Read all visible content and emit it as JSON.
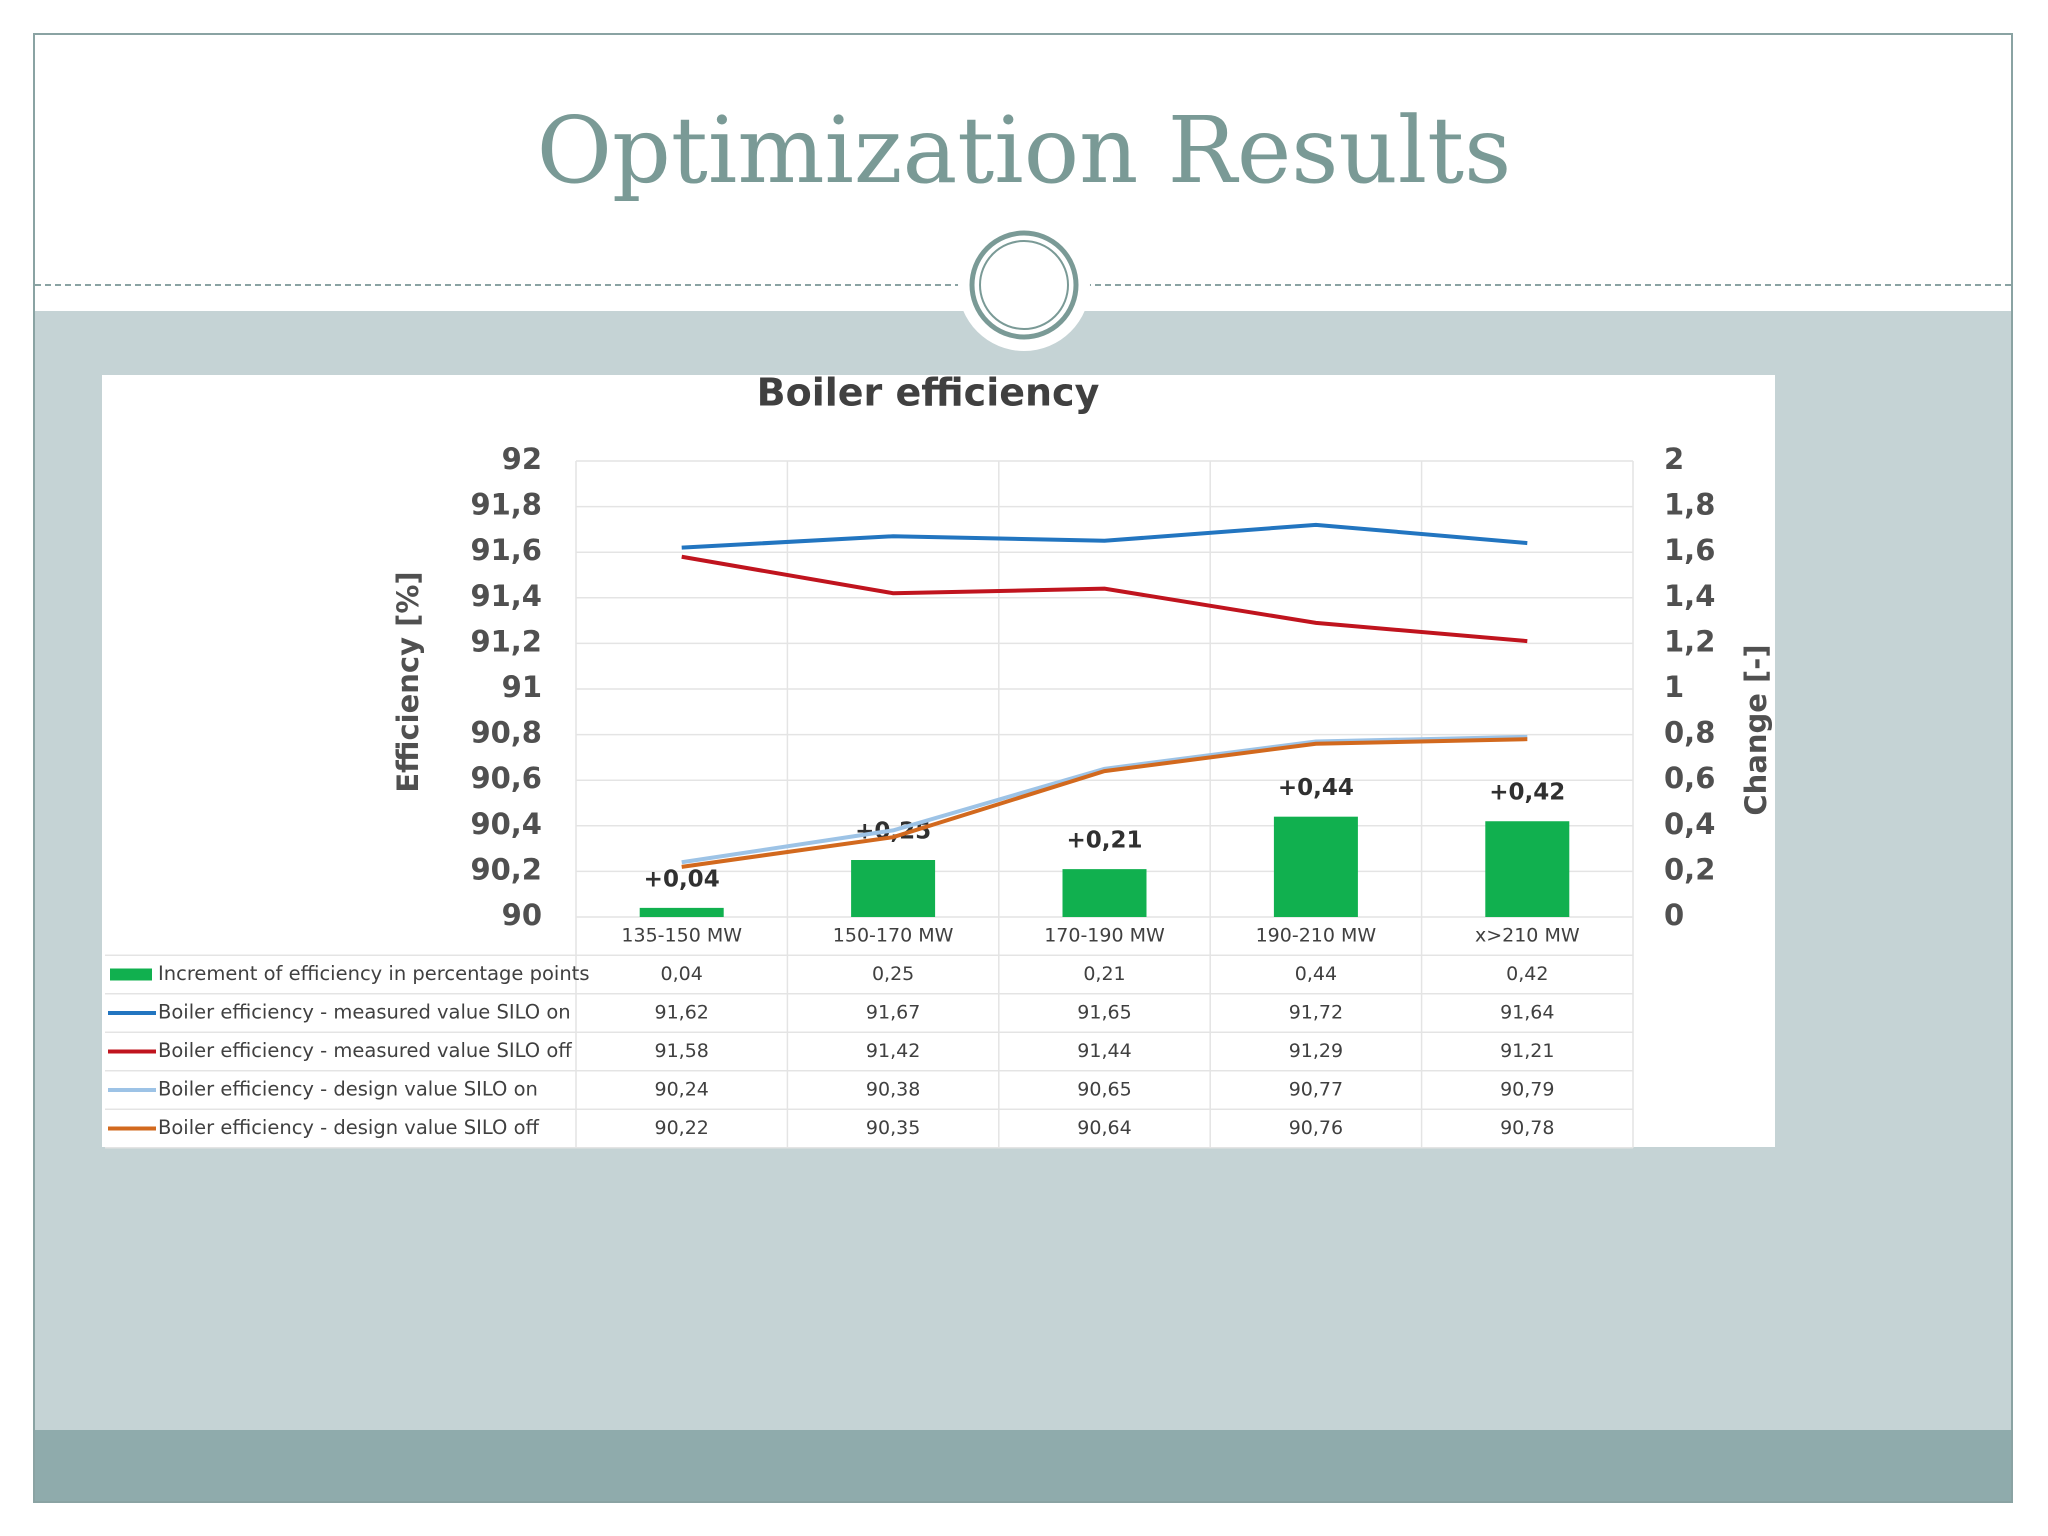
{
  "slide_title": "Optimization Results",
  "chart_data": {
    "type": "bar_line",
    "title": "Boiler efficiency",
    "y_label": "Efficiency [%]",
    "y2_label": "Change [-]",
    "categories": [
      "135-150 MW",
      "150-170 MW",
      "170-190 MW",
      "190-210 MW",
      "x>210 MW"
    ],
    "ylim": [
      90,
      92
    ],
    "yticks": [
      90,
      {
        "value": 90.2,
        "label": "90,2"
      },
      {
        "value": 90.4,
        "label": "90,4"
      },
      {
        "value": 90.6,
        "label": "90,6"
      },
      {
        "value": 90.8,
        "label": "90,8"
      },
      91,
      {
        "value": 91.2,
        "label": "91,2"
      },
      {
        "value": 91.4,
        "label": "91,4"
      },
      {
        "value": 91.6,
        "label": "91,6"
      },
      {
        "value": 91.8,
        "label": "91,8"
      },
      92
    ],
    "y2lim": [
      0,
      2
    ],
    "y2ticks": [
      0,
      {
        "value": 0.2,
        "label": "0,2"
      },
      {
        "value": 0.4,
        "label": "0,4"
      },
      {
        "value": 0.6,
        "label": "0,6"
      },
      {
        "value": 0.8,
        "label": "0,8"
      },
      1,
      {
        "value": 1.2,
        "label": "1,2"
      },
      {
        "value": 1.4,
        "label": "1,4"
      },
      {
        "value": 1.6,
        "label": "1,6"
      },
      {
        "value": 1.8,
        "label": "1,8"
      },
      2
    ],
    "grid": true,
    "series": [
      {
        "name": "Increment of efficiency in percentage points",
        "type": "bar",
        "axis": "y2",
        "color": "#11b04f",
        "values": [
          0.04,
          0.25,
          0.21,
          0.44,
          0.42
        ],
        "value_labels": [
          "+0,04",
          "+0,25",
          "+0,21",
          "+0,44",
          "+0,42"
        ],
        "table_labels": [
          "0,04",
          "0,25",
          "0,21",
          "0,44",
          "0,42"
        ]
      },
      {
        "name": "Boiler efficiency - measured value SILO on",
        "type": "line",
        "color": "#2275c0",
        "values": [
          91.62,
          91.67,
          91.65,
          91.72,
          91.64
        ],
        "table_labels": [
          "91,62",
          "91,67",
          "91,65",
          "91,72",
          "91,64"
        ]
      },
      {
        "name": "Boiler efficiency - measured value SILO off",
        "type": "line",
        "color": "#c0141e",
        "values": [
          91.58,
          91.42,
          91.44,
          91.29,
          91.21
        ],
        "table_labels": [
          "91,58",
          "91,42",
          "91,44",
          "91,29",
          "91,21"
        ]
      },
      {
        "name": "Boiler efficiency - design value  SILO on",
        "type": "line",
        "color": "#9dc3e6",
        "values": [
          90.24,
          90.38,
          90.65,
          90.77,
          90.79
        ],
        "table_labels": [
          "90,24",
          "90,38",
          "90,65",
          "90,77",
          "90,79"
        ]
      },
      {
        "name": "Boiler efficiency - design value SILO off",
        "type": "line",
        "color": "#d2691e",
        "values": [
          90.22,
          90.35,
          90.64,
          90.76,
          90.78
        ],
        "table_labels": [
          "90,22",
          "90,35",
          "90,64",
          "90,76",
          "90,78"
        ]
      }
    ]
  }
}
